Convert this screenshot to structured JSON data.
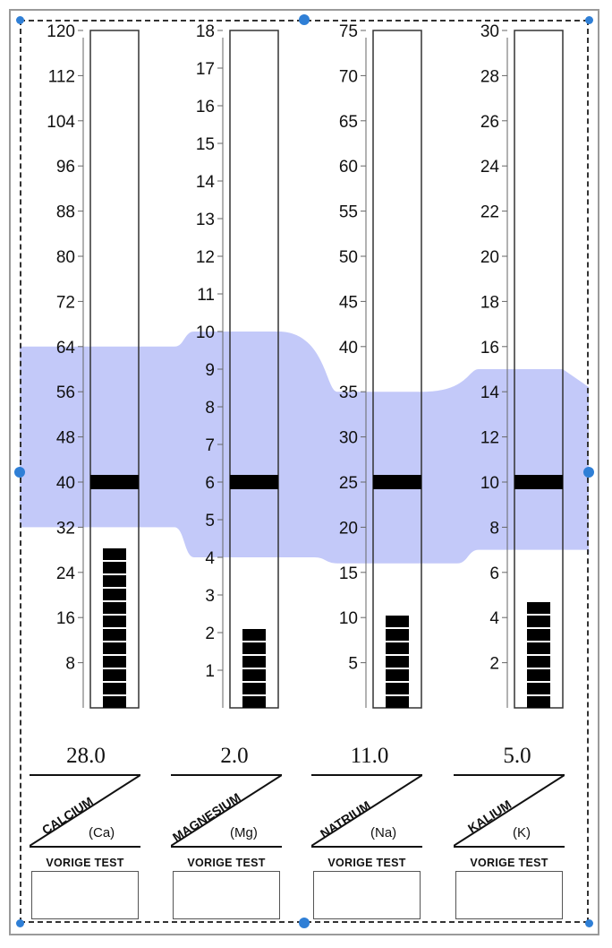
{
  "colors": {
    "normal_band": "#c3c9f9",
    "marker": "#000000",
    "frame": "#9a9a9a",
    "handle": "#2f7fd6"
  },
  "chart_data": {
    "type": "bar",
    "grid": false,
    "normal_band": "shaded reference range across all columns",
    "columns": [
      {
        "id": "calcium",
        "name": "CALCIUM",
        "symbol": "(Ca)",
        "value_label": "28.0",
        "value": 28.0,
        "ylim": [
          0,
          120
        ],
        "ticks": [
          "8",
          "16",
          "24",
          "32",
          "40",
          "48",
          "56",
          "64",
          "72",
          "80",
          "88",
          "96",
          "104",
          "112",
          "120"
        ],
        "tick_values": [
          8,
          16,
          24,
          32,
          40,
          48,
          56,
          64,
          72,
          80,
          88,
          96,
          104,
          112,
          120
        ],
        "target": 40,
        "normal_range": [
          32,
          64
        ],
        "previous_label": "VORIGE TEST",
        "previous_value": ""
      },
      {
        "id": "magnesium",
        "name": "MAGNESIUM",
        "symbol": "(Mg)",
        "value_label": "2.0",
        "value": 2.0,
        "ylim": [
          0,
          18
        ],
        "ticks": [
          "1",
          "2",
          "3",
          "4",
          "5",
          "6",
          "7",
          "8",
          "9",
          "10",
          "11",
          "12",
          "13",
          "14",
          "15",
          "16",
          "17",
          "18"
        ],
        "tick_values": [
          1,
          2,
          3,
          4,
          5,
          6,
          7,
          8,
          9,
          10,
          11,
          12,
          13,
          14,
          15,
          16,
          17,
          18
        ],
        "target": 6,
        "normal_range": [
          4,
          10
        ],
        "previous_label": "VORIGE TEST",
        "previous_value": ""
      },
      {
        "id": "natrium",
        "name": "NATRIUM",
        "symbol": "(Na)",
        "value_label": "11.0",
        "value": 11.0,
        "ylim": [
          0,
          75
        ],
        "ticks": [
          "5",
          "10",
          "15",
          "20",
          "25",
          "30",
          "35",
          "40",
          "45",
          "50",
          "55",
          "60",
          "65",
          "70",
          "75"
        ],
        "tick_values": [
          5,
          10,
          15,
          20,
          25,
          30,
          35,
          40,
          45,
          50,
          55,
          60,
          65,
          70,
          75
        ],
        "target": 25,
        "normal_range": [
          16,
          35
        ],
        "previous_label": "VORIGE TEST",
        "previous_value": ""
      },
      {
        "id": "kalium",
        "name": "KALIUM",
        "symbol": "(K)",
        "value_label": "5.0",
        "value": 5.0,
        "ylim": [
          0,
          30
        ],
        "ticks": [
          "2",
          "4",
          "6",
          "8",
          "10",
          "12",
          "14",
          "16",
          "18",
          "20",
          "22",
          "24",
          "26",
          "28",
          "30"
        ],
        "tick_values": [
          2,
          4,
          6,
          8,
          10,
          12,
          14,
          16,
          18,
          20,
          22,
          24,
          26,
          28,
          30
        ],
        "target": 10,
        "normal_range": [
          7,
          15
        ],
        "previous_label": "VORIGE TEST",
        "previous_value": ""
      }
    ]
  }
}
